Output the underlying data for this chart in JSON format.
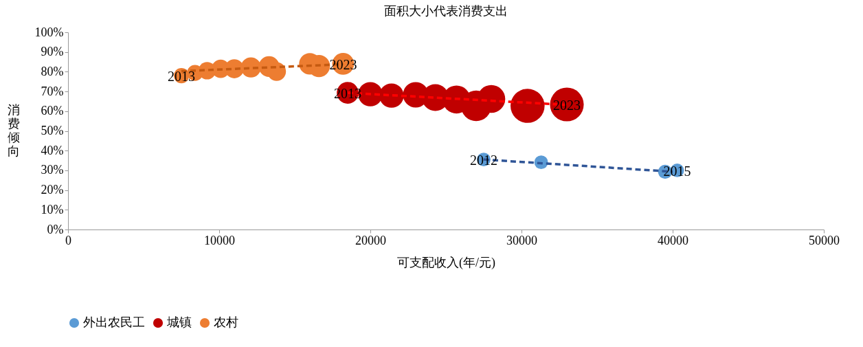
{
  "chart_data": {
    "type": "bubble",
    "title": "面积大小代表消费支出",
    "xlabel": "可支配收入(年/元)",
    "ylabel": "消费倾向",
    "xlim": [
      0,
      50000
    ],
    "xticks": [
      0,
      10000,
      20000,
      30000,
      40000,
      50000
    ],
    "ylim": [
      0,
      100
    ],
    "yticks": [
      {
        "value": 0,
        "label": "0%"
      },
      {
        "value": 10,
        "label": "10%"
      },
      {
        "value": 20,
        "label": "20%"
      },
      {
        "value": 30,
        "label": "30%"
      },
      {
        "value": 40,
        "label": "40%"
      },
      {
        "value": 50,
        "label": "50%"
      },
      {
        "value": 60,
        "label": "60%"
      },
      {
        "value": 70,
        "label": "70%"
      },
      {
        "value": 80,
        "label": "80%"
      },
      {
        "value": 90,
        "label": "90%"
      },
      {
        "value": 100,
        "label": "100%"
      }
    ],
    "grid": false,
    "legend": "bottom",
    "series": [
      {
        "name": "外出农民工",
        "color": "#5b9bd5",
        "x": [
          27500,
          31300,
          39500,
          40300
        ],
        "values": [
          35.5,
          34.1,
          29.3,
          30.0
        ],
        "sizes": [
          0.16,
          0.16,
          0.17,
          0.16
        ]
      },
      {
        "name": "城镇",
        "color": "#c00000",
        "x": [
          18500,
          20000,
          21400,
          23000,
          24300,
          25700,
          27000,
          28000,
          30400,
          33000
        ],
        "values": [
          69.3,
          68.6,
          67.9,
          68.3,
          66.9,
          65.9,
          62.7,
          66.2,
          62.7,
          63.4
        ],
        "sizes": [
          0.41,
          0.51,
          0.51,
          0.56,
          0.62,
          0.67,
          0.8,
          0.67,
          1.0,
          0.98
        ]
      },
      {
        "name": "农村",
        "color": "#ed7d31",
        "x": [
          7500,
          8400,
          9200,
          10100,
          11000,
          12100,
          13300,
          13800,
          16000,
          16600,
          18200
        ],
        "values": [
          78.0,
          79.4,
          80.5,
          81.5,
          81.5,
          82.2,
          82.6,
          80.1,
          84.0,
          82.9,
          84.0
        ],
        "sizes": [
          0.2,
          0.22,
          0.26,
          0.29,
          0.31,
          0.35,
          0.37,
          0.3,
          0.4,
          0.42,
          0.41
        ]
      },
      {
        "type": "line",
        "line_style": "dashed",
        "marker": "none",
        "color": "#c55a11",
        "x": [
          7500,
          18200
        ],
        "values": [
          80.3,
          83.8
        ]
      },
      {
        "type": "line",
        "line_style": "dashed",
        "marker": "none",
        "color": "#ff0000",
        "x": [
          18500,
          33000
        ],
        "values": [
          69.3,
          63.2
        ]
      },
      {
        "type": "line",
        "line_style": "dashed",
        "marker": "none",
        "color": "#2f5597",
        "x": [
          27500,
          40000
        ],
        "values": [
          35.5,
          29.3
        ]
      }
    ],
    "annotations": [
      {
        "text": "2013",
        "x": 7500,
        "y": 78.0
      },
      {
        "text": "2023",
        "x": 18200,
        "y": 84.0
      },
      {
        "text": "2013",
        "x": 18500,
        "y": 69.3
      },
      {
        "text": "2023",
        "x": 33000,
        "y": 63.4
      },
      {
        "text": "2012",
        "x": 27500,
        "y": 35.5
      },
      {
        "text": "2015",
        "x": 40300,
        "y": 30.0
      }
    ]
  }
}
